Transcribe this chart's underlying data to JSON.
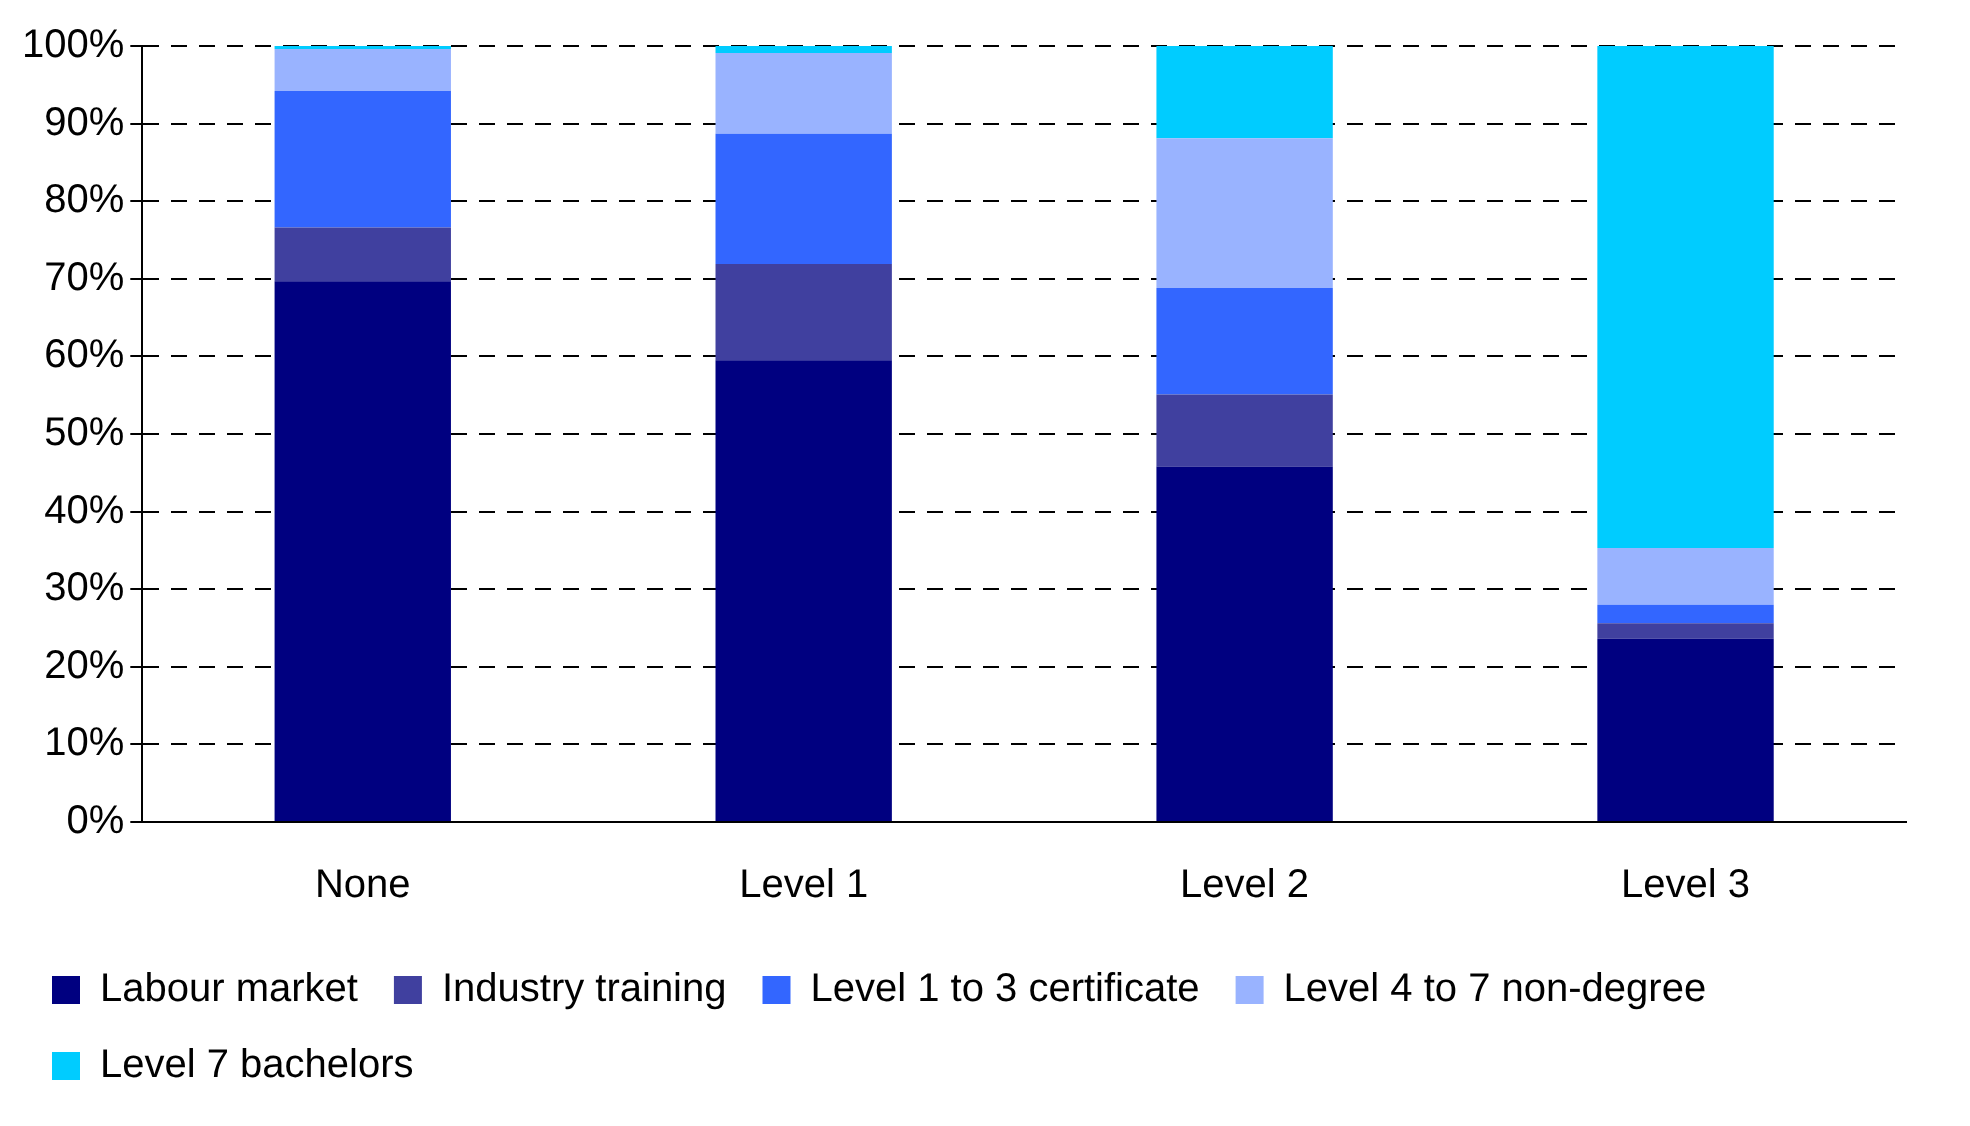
{
  "chart_data": {
    "type": "bar",
    "stacked": true,
    "categories": [
      "None",
      "Level 1",
      "Level 2",
      "Level 3"
    ],
    "series": [
      {
        "name": "Labour market",
        "color": "#000080",
        "values": [
          69.7,
          59.5,
          45.8,
          23.6
        ]
      },
      {
        "name": "Industry training",
        "color": "#40409f",
        "values": [
          6.9,
          12.4,
          9.3,
          2.0
        ]
      },
      {
        "name": "Level 1 to 3 certificate",
        "color": "#3366ff",
        "values": [
          17.6,
          16.8,
          13.7,
          2.4
        ]
      },
      {
        "name": "Level 4 to 7 non-degree",
        "color": "#99b3ff",
        "values": [
          5.4,
          10.4,
          19.3,
          7.3
        ]
      },
      {
        "name": "Level 7 bachelors",
        "color": "#00ccff",
        "values": [
          0.4,
          0.9,
          11.9,
          64.7
        ]
      }
    ],
    "ylim": [
      0,
      100
    ],
    "yticks": [
      {
        "value": 0,
        "label": "0%"
      },
      {
        "value": 10,
        "label": "10%"
      },
      {
        "value": 20,
        "label": "20%"
      },
      {
        "value": 30,
        "label": "30%"
      },
      {
        "value": 40,
        "label": "40%"
      },
      {
        "value": 50,
        "label": "50%"
      },
      {
        "value": 60,
        "label": "60%"
      },
      {
        "value": 70,
        "label": "70%"
      },
      {
        "value": 80,
        "label": "80%"
      },
      {
        "value": 90,
        "label": "90%"
      },
      {
        "value": 100,
        "label": "100%"
      }
    ],
    "grid": "y",
    "legend": "bottom"
  }
}
